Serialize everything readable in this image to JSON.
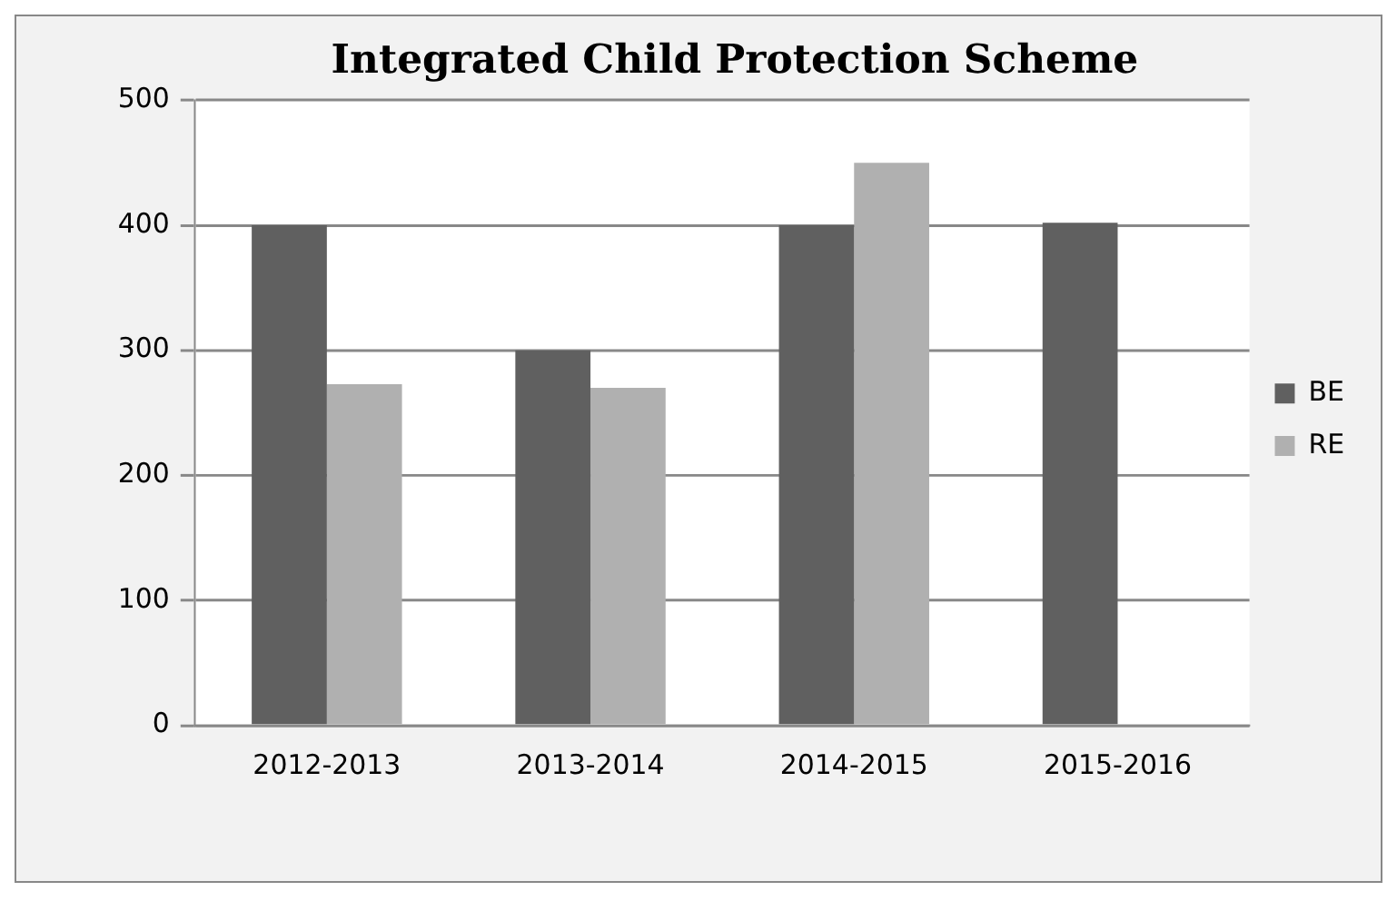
{
  "chart_data": {
    "type": "bar",
    "title": "Integrated Child Protection Scheme",
    "categories": [
      "2012-2013",
      "2013-2014",
      "2014-2015",
      "2015-2016"
    ],
    "series": [
      {
        "name": "BE",
        "color": "#606060",
        "values": [
          400,
          300,
          400,
          402
        ]
      },
      {
        "name": "RE",
        "color": "#b0b0b0",
        "values": [
          273,
          270,
          450,
          null
        ]
      }
    ],
    "ylim": [
      0,
      500
    ],
    "yticks": [
      0,
      100,
      200,
      300,
      400,
      500
    ],
    "grid": "y",
    "legend": "right"
  }
}
